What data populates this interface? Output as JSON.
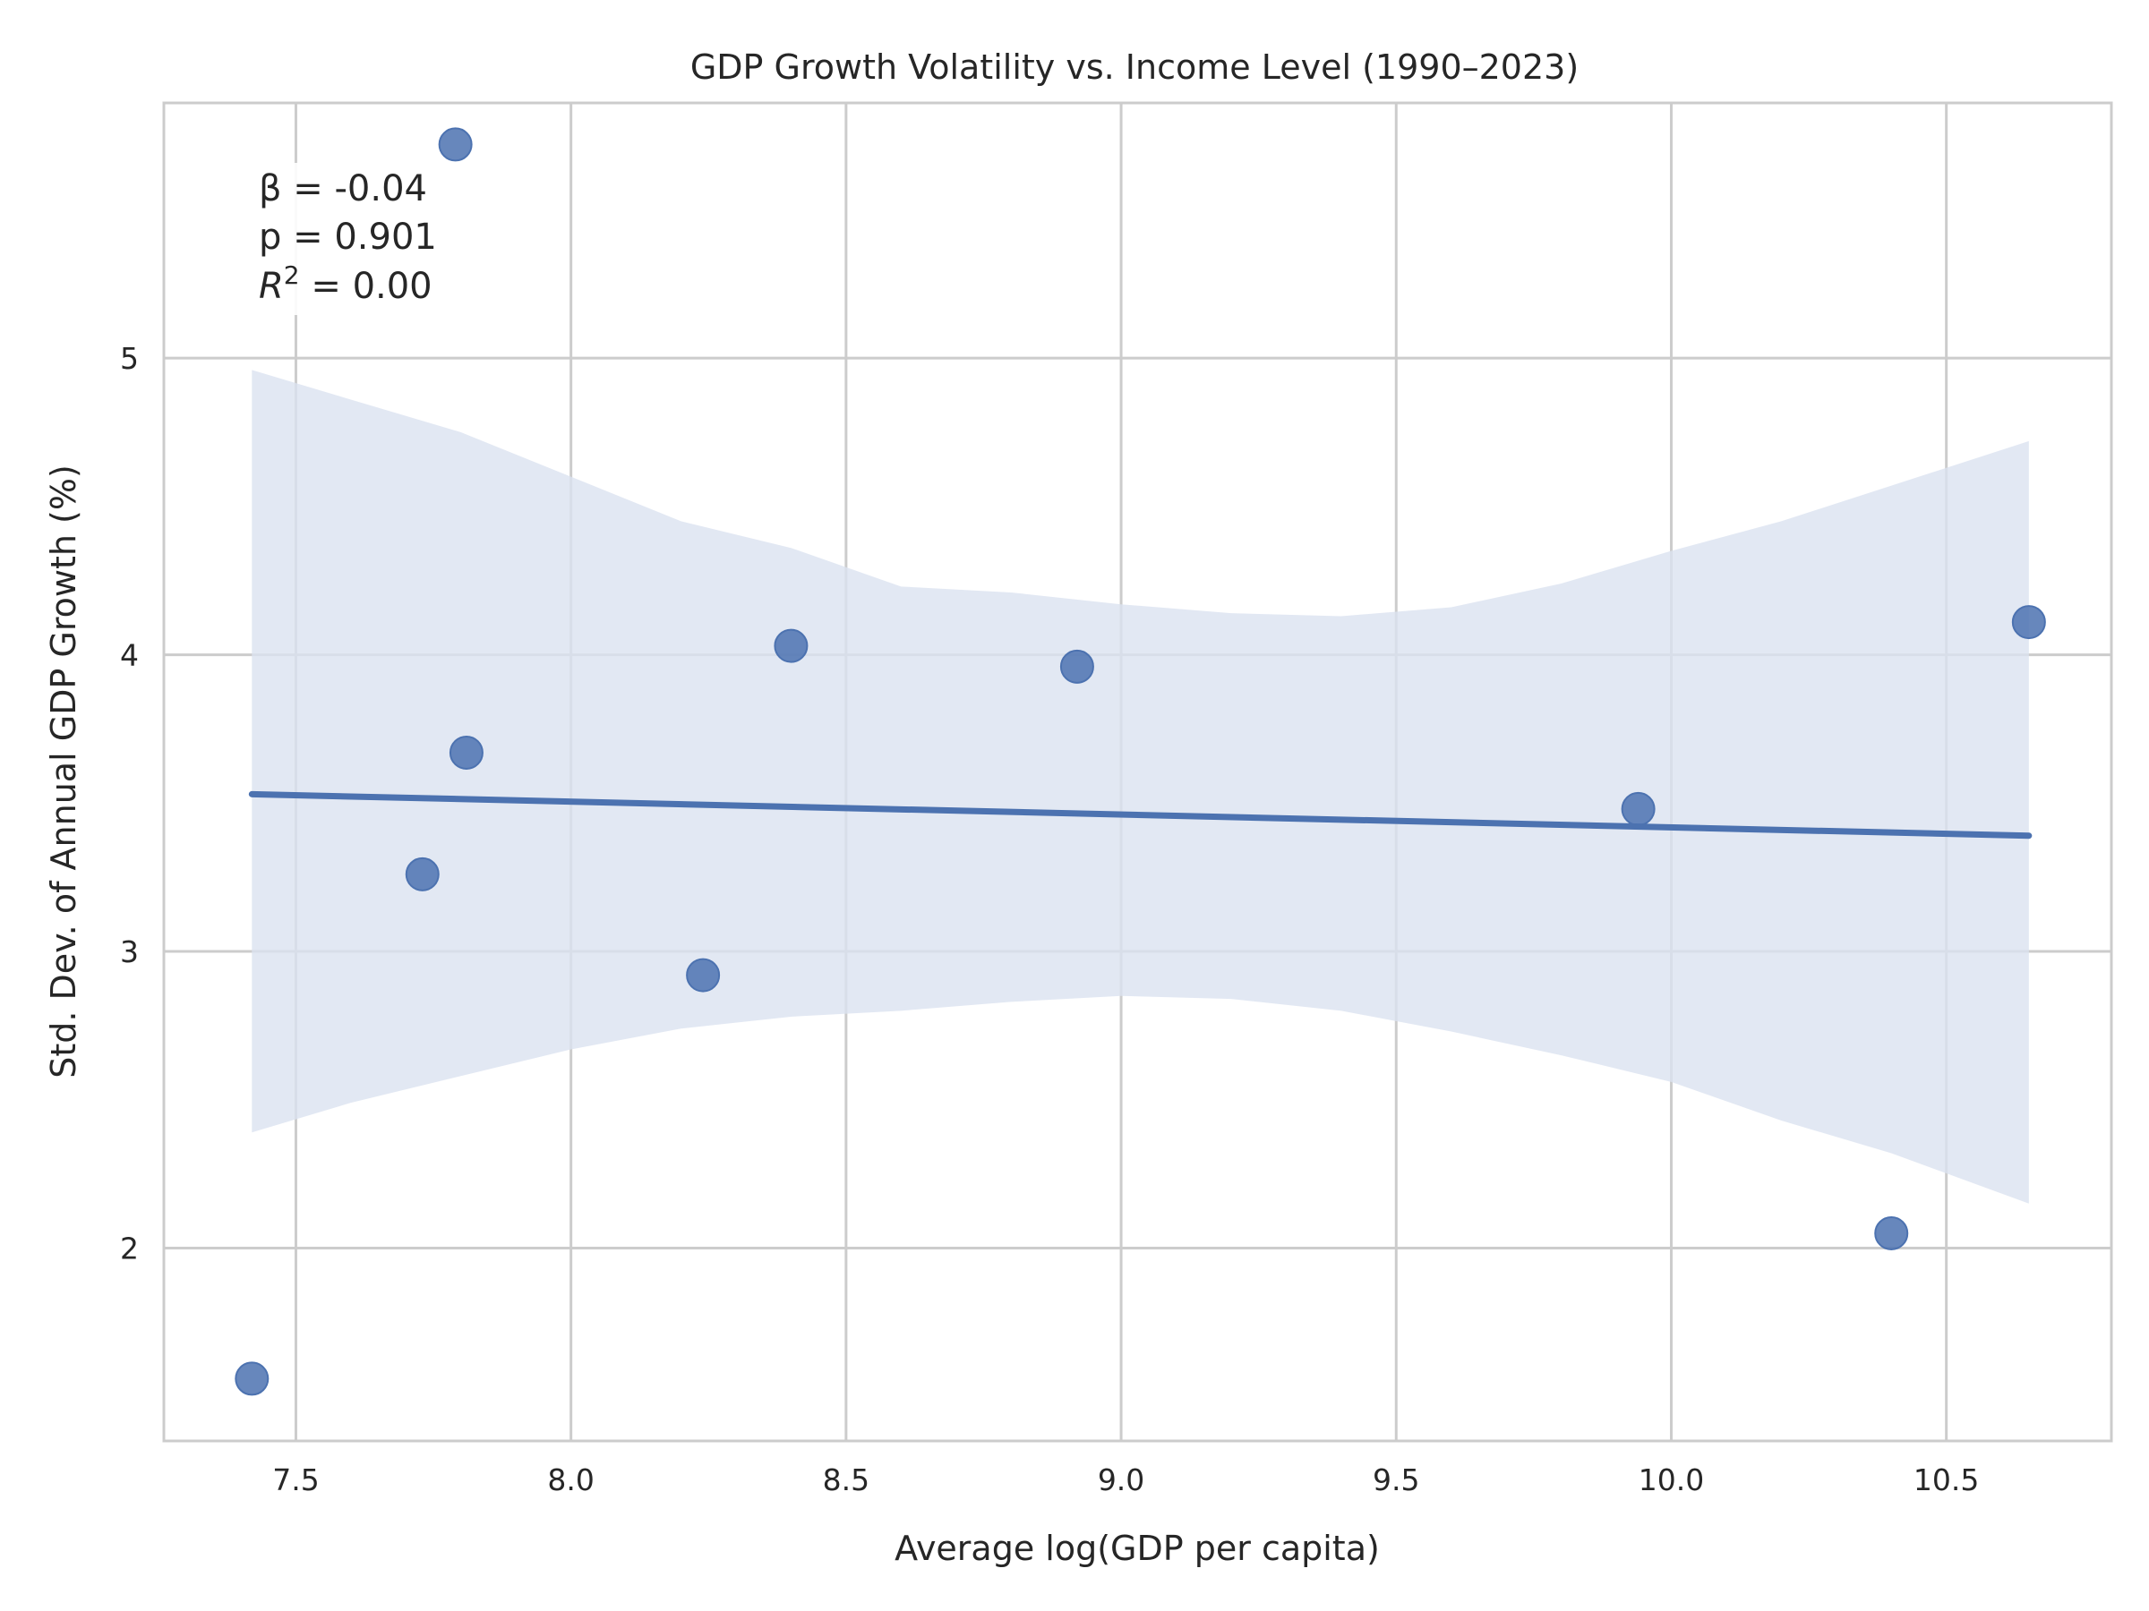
{
  "chart_data": {
    "type": "scatter",
    "title": "GDP Growth Volatility vs. Income Level (1990–2023)",
    "xlabel": "Average log(GDP per capita)",
    "ylabel": "Std. Dev. of Annual GDP Growth (%)",
    "xlim": [
      7.26,
      10.8
    ],
    "ylim": [
      1.35,
      5.86
    ],
    "xticks": [
      "7.5",
      "8.0",
      "8.5",
      "9.0",
      "9.5",
      "10.0",
      "10.5"
    ],
    "yticks": [
      "2",
      "3",
      "4",
      "5"
    ],
    "grid": true,
    "colors": {
      "points": "#4c72b0",
      "line": "#4c72b0",
      "band": "#dbe2f0",
      "grid": "#cccccc",
      "frame": "#cccccc"
    },
    "points": [
      {
        "x": 7.42,
        "y": 1.56
      },
      {
        "x": 7.73,
        "y": 3.26
      },
      {
        "x": 7.79,
        "y": 5.72
      },
      {
        "x": 7.81,
        "y": 3.67
      },
      {
        "x": 8.24,
        "y": 2.92
      },
      {
        "x": 8.4,
        "y": 4.03
      },
      {
        "x": 8.92,
        "y": 3.96
      },
      {
        "x": 9.94,
        "y": 3.48
      },
      {
        "x": 10.4,
        "y": 2.05
      },
      {
        "x": 10.65,
        "y": 4.11
      }
    ],
    "fit_line": [
      {
        "x": 7.42,
        "y": 3.53
      },
      {
        "x": 10.65,
        "y": 3.39
      }
    ],
    "confidence_band": {
      "x": [
        7.42,
        7.6,
        7.8,
        8.0,
        8.2,
        8.4,
        8.6,
        8.8,
        9.0,
        9.2,
        9.4,
        9.6,
        9.8,
        10.0,
        10.2,
        10.4,
        10.65
      ],
      "upper": [
        4.96,
        4.86,
        4.75,
        4.6,
        4.45,
        4.36,
        4.23,
        4.21,
        4.17,
        4.14,
        4.13,
        4.16,
        4.24,
        4.35,
        4.45,
        4.57,
        4.72
      ],
      "lower": [
        2.39,
        2.49,
        2.58,
        2.67,
        2.74,
        2.78,
        2.8,
        2.83,
        2.85,
        2.84,
        2.8,
        2.73,
        2.65,
        2.56,
        2.43,
        2.32,
        2.15
      ]
    },
    "annotation": {
      "beta": "β = -0.04",
      "p": "p = 0.901",
      "r2_symbol": "R",
      "r2_exp": "2",
      "r2_value": " = 0.00"
    }
  }
}
